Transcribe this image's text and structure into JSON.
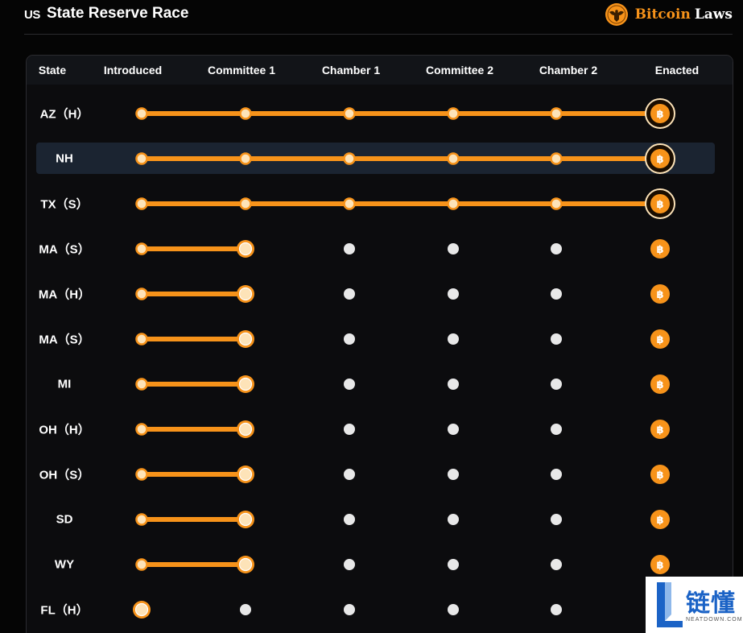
{
  "header": {
    "flag_text": "US",
    "title": "State Reserve Race",
    "brand_bitcoin": "Bitcoin",
    "brand_laws": "Laws"
  },
  "table": {
    "columns": [
      "State",
      "Introduced",
      "Committee 1",
      "Chamber 1",
      "Committee 2",
      "Chamber 2",
      "Enacted"
    ],
    "rows": [
      {
        "state": "AZ（H）",
        "progress": 5,
        "highlighted": false
      },
      {
        "state": "NH",
        "progress": 5,
        "highlighted": true
      },
      {
        "state": "TX（S）",
        "progress": 5,
        "highlighted": false
      },
      {
        "state": "MA（S）",
        "progress": 1,
        "highlighted": false
      },
      {
        "state": "MA（H）",
        "progress": 1,
        "highlighted": false
      },
      {
        "state": "MA（S）",
        "progress": 1,
        "highlighted": false
      },
      {
        "state": "MI",
        "progress": 1,
        "highlighted": false
      },
      {
        "state": "OH（H）",
        "progress": 1,
        "highlighted": false
      },
      {
        "state": "OH（S）",
        "progress": 1,
        "highlighted": false
      },
      {
        "state": "SD",
        "progress": 1,
        "highlighted": false
      },
      {
        "state": "WY",
        "progress": 1,
        "highlighted": false
      },
      {
        "state": "FL（H）",
        "progress": 0,
        "highlighted": false
      }
    ]
  },
  "colors": {
    "accent": "#f7931a",
    "node_fill": "#fde3b8",
    "pending_node": "#e8e8e8",
    "highlight_row": "#1b2431"
  },
  "icons": {
    "brand": "eagle-seal-icon",
    "enacted": "bitcoin-icon"
  },
  "watermark": {
    "text": "链懂",
    "sub": "NEATDOWN.COM"
  }
}
